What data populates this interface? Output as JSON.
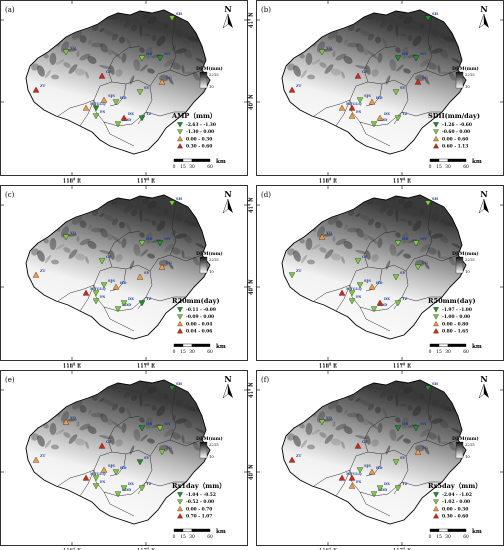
{
  "map": {
    "north_label": "N",
    "lon_labels": [
      "116° E",
      "117° E"
    ],
    "lat_labels": [
      "41° N",
      "40° N"
    ],
    "dem": {
      "label": "DEM(mm)",
      "max": "2215",
      "min": "10"
    },
    "scale": {
      "ticks": [
        "0",
        "15",
        "30",
        "60"
      ],
      "unit": "km"
    },
    "stations": [
      "SH",
      "ZT",
      "MY",
      "PG",
      "CP",
      "HD",
      "SJS",
      "FS",
      "BDD",
      "DX",
      "LQ",
      "SY",
      "YQ",
      "MTG",
      "HR",
      "TZ"
    ]
  },
  "colors": {
    "negative_strong": "#1f8f2e",
    "negative_weak": "#7ccb3a",
    "positive_weak": "#f59a3c",
    "positive_strong": "#d92618"
  },
  "panels": [
    {
      "id": "a",
      "tag": "(a)",
      "legend_title": "AMP（mm）",
      "classes": [
        "-2.63 - -1.30",
        "-1.30 - 0.00",
        "0.00 - 0.30",
        "0.30 - 0.60"
      ]
    },
    {
      "id": "b",
      "tag": "(b)",
      "legend_title": "SDII(mm/day)",
      "classes": [
        "-1.26 - -0.60",
        "-0.60 - 0.00",
        "0.00 - 0.60",
        "0.60 - 1.13"
      ]
    },
    {
      "id": "c",
      "tag": "(c)",
      "legend_title": "R20mm(day)",
      "classes": [
        "-0.11 - -0.09",
        "-0.09 - 0.00",
        "0.00 - 0.04",
        "0.04 - 0.06"
      ]
    },
    {
      "id": "d",
      "tag": "(d)",
      "legend_title": "R50mm(day)",
      "classes": [
        "-1.97 - -1.00",
        "-1.00 - 0.00",
        "0.00 - 0.80",
        "0.80 - 1.65"
      ]
    },
    {
      "id": "e",
      "tag": "(e)",
      "legend_title": "Rx1day（mm）",
      "classes": [
        "-1.04 - -0.52",
        "-0.52 - 0.00",
        "0.00 - 0.70",
        "0.70 - 1.07"
      ]
    },
    {
      "id": "f",
      "tag": "(f)",
      "legend_title": "Rx5day（mm）",
      "classes": [
        "-2.04 - -1.02",
        "-1.02 - 0.00",
        "0.00 - 0.30",
        "0.30 - 0.60"
      ]
    }
  ]
}
